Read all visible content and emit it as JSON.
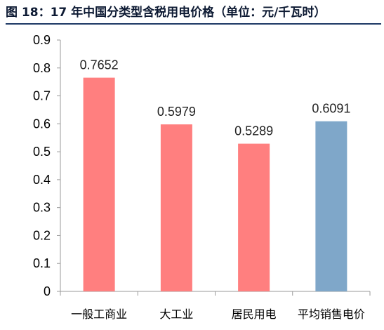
{
  "chart_data": {
    "type": "bar",
    "title": "图 18：17 年中国分类型含税用电价格（单位：元/千瓦时）",
    "xlabel": "",
    "ylabel": "",
    "categories": [
      "一般工商业",
      "大工业",
      "居民用电",
      "平均销售电价"
    ],
    "values": [
      0.7652,
      0.5979,
      0.5289,
      0.6091
    ],
    "data_labels": [
      "0.7652",
      "0.5979",
      "0.5289",
      "0.6091"
    ],
    "ylim": [
      0,
      0.9
    ],
    "yticks": [
      "0",
      "0.1",
      "0.2",
      "0.3",
      "0.4",
      "0.5",
      "0.6",
      "0.7",
      "0.8",
      "0.9"
    ],
    "bar_colors": [
      "#ff7f7f",
      "#ff7f7f",
      "#ff7f7f",
      "#7fa7c9"
    ],
    "grid": false,
    "legend": "none"
  }
}
